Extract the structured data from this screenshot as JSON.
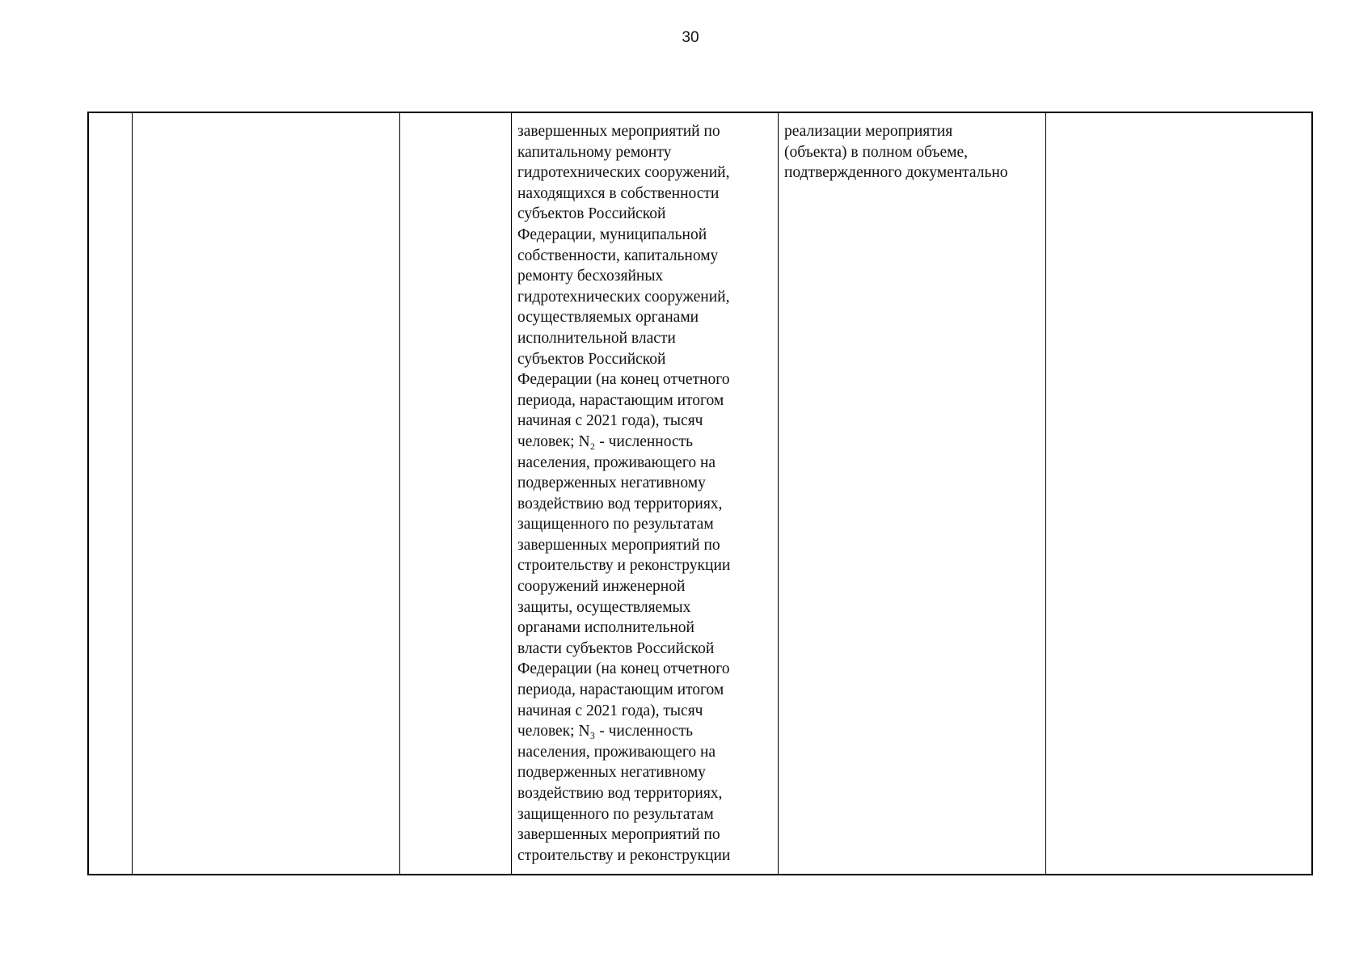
{
  "page_number": "30",
  "table": {
    "row": {
      "col4_lines": [
        "завершенных мероприятий по",
        "капитальному ремонту",
        "гидротехнических сооружений,",
        "находящихся в собственности",
        "субъектов Российской",
        "Федерации, муниципальной",
        "собственности, капитальному",
        "ремонту бесхозяйных",
        "гидротехнических сооружений,",
        "осуществляемых органами",
        "исполнительной власти",
        "субъектов Российской",
        "Федерации (на конец отчетного",
        "периода, нарастающим итогом",
        "начиная с 2021 года), тысяч",
        "человек; N₂ - численность",
        "населения, проживающего на",
        "подверженных негативному",
        "воздействию вод территориях,",
        "защищенного по результатам",
        "завершенных мероприятий по",
        "строительству и реконструкции",
        "сооружений инженерной",
        "защиты, осуществляемых",
        "органами исполнительной",
        "власти субъектов Российской",
        "Федерации (на конец отчетного",
        "периода, нарастающим итогом",
        "начиная с 2021 года), тысяч",
        "человек; N₃ - численность",
        "населения, проживающего на",
        "подверженных негативному",
        "воздействию вод территориях,",
        "защищенного по результатам",
        "завершенных мероприятий по",
        "строительству и реконструкции"
      ],
      "col5_lines": [
        "реализации мероприятия",
        "(объекта) в полном объеме,",
        "подтвержденного документально"
      ]
    }
  }
}
